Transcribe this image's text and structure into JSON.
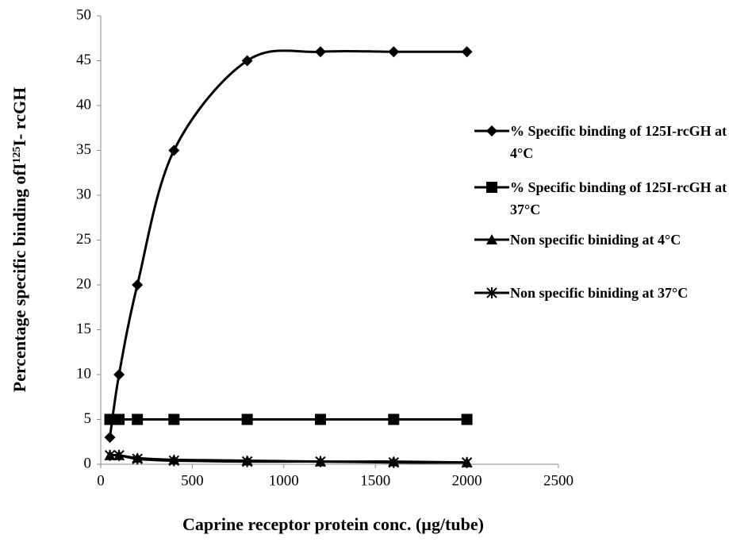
{
  "chart_data": {
    "type": "line",
    "x_label": "Caprine receptor protein conc. (µg/tube)",
    "y_label": [
      "Percentage specific binding ofI",
      "125",
      "I- rcGH"
    ],
    "x": [
      50,
      100,
      200,
      400,
      800,
      1200,
      1600,
      2000
    ],
    "series": [
      {
        "name": "% Specific binding of 125I-rcGH at 4°C",
        "color": "#000000",
        "marker": "diamond",
        "values": [
          3,
          10,
          20,
          35,
          45,
          46,
          46,
          46
        ]
      },
      {
        "name": "% Specific binding of 125I-rcGH at 37°C",
        "color": "#000000",
        "marker": "square",
        "values": [
          5,
          5,
          5,
          5,
          5,
          5,
          5,
          5
        ]
      },
      {
        "name": "Non specific biniding at 4°C",
        "color": "#000000",
        "marker": "triangle",
        "values": [
          1,
          1,
          0.7,
          0.5,
          0.4,
          0.3,
          0.3,
          0.2
        ]
      },
      {
        "name": "Non specific biniding at 37°C",
        "color": "#000000",
        "marker": "star",
        "values": [
          1,
          1,
          0.6,
          0.4,
          0.3,
          0.3,
          0.2,
          0.2
        ]
      }
    ],
    "xlim": [
      0,
      2500
    ],
    "xticks": [
      0,
      500,
      1000,
      1500,
      2000,
      2500
    ],
    "ylim": [
      0,
      50
    ],
    "yticks": [
      0,
      5,
      10,
      15,
      20,
      25,
      30,
      35,
      40,
      45,
      50
    ],
    "grid": false,
    "smooth": true
  }
}
